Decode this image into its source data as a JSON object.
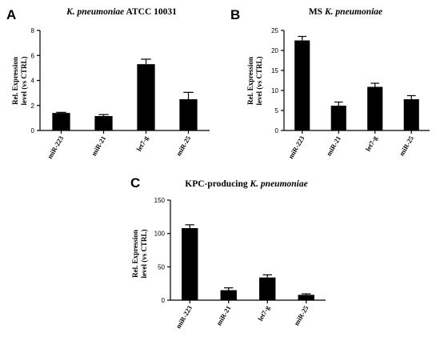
{
  "chart_data": [
    {
      "type": "bar",
      "panel_label": "A",
      "title_italic": "K. pneumoniae",
      "title_rest": " ATCC 10031",
      "ylabel": [
        "Rel. Expression",
        "level (vs CTRL)"
      ],
      "categories": [
        "miR-223",
        "miR-21",
        "let7-g",
        "miR-25"
      ],
      "values": [
        1.4,
        1.15,
        5.3,
        2.5
      ],
      "errors": [
        0.05,
        0.12,
        0.4,
        0.55
      ],
      "ylim": [
        0,
        8
      ],
      "yticks": [
        0,
        2,
        4,
        6,
        8
      ],
      "color": "#000000"
    },
    {
      "type": "bar",
      "panel_label": "B",
      "title_plain": "MS ",
      "title_italic": "K. pneumoniae",
      "ylabel": [
        "Rel. Expression",
        "level (vs CTRL)"
      ],
      "categories": [
        "miR-223",
        "miR-21",
        "let7-g",
        "miR-25"
      ],
      "values": [
        22.5,
        6.2,
        10.9,
        7.8
      ],
      "errors": [
        1.0,
        0.9,
        0.9,
        0.9
      ],
      "ylim": [
        0,
        25
      ],
      "yticks": [
        0,
        5,
        10,
        15,
        20,
        25
      ],
      "color": "#000000"
    },
    {
      "type": "bar",
      "panel_label": "C",
      "title_plain": "KPC-producing ",
      "title_italic": "K. pneumoniae",
      "ylabel": [
        "Rel. Expression",
        "level (vs CTRL)"
      ],
      "categories": [
        "miR-223",
        "miR-21",
        "let7-g",
        "miR-25"
      ],
      "values": [
        108,
        15,
        34,
        8
      ],
      "errors": [
        5,
        3.5,
        4,
        1.5
      ],
      "ylim": [
        0,
        150
      ],
      "yticks": [
        0,
        50,
        100,
        150
      ],
      "color": "#000000"
    }
  ]
}
